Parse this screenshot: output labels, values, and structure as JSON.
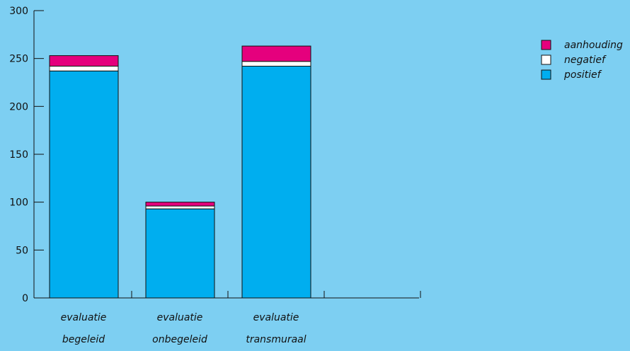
{
  "chart_data": {
    "type": "bar",
    "stacked": true,
    "categories": [
      [
        "evaluatie",
        "begeleid"
      ],
      [
        "evaluatie",
        "onbegeleid"
      ],
      [
        "evaluatie",
        "transmuraal"
      ],
      [
        "",
        ""
      ]
    ],
    "series": [
      {
        "name": "positief",
        "color": "#00aeef",
        "values": [
          237,
          93,
          242,
          0
        ]
      },
      {
        "name": "negatief",
        "color": "#ffffff",
        "values": [
          5,
          3,
          5,
          0
        ]
      },
      {
        "name": "aanhouding",
        "color": "#e5007d",
        "values": [
          11,
          4,
          16,
          0
        ]
      }
    ],
    "legend_order": [
      "aanhouding",
      "negatief",
      "positief"
    ],
    "legend_position": "top-right",
    "ylim": [
      0,
      300
    ],
    "yticks": [
      0,
      50,
      100,
      150,
      200,
      250,
      300
    ],
    "grid": false,
    "title": "",
    "xlabel": "",
    "ylabel": ""
  }
}
